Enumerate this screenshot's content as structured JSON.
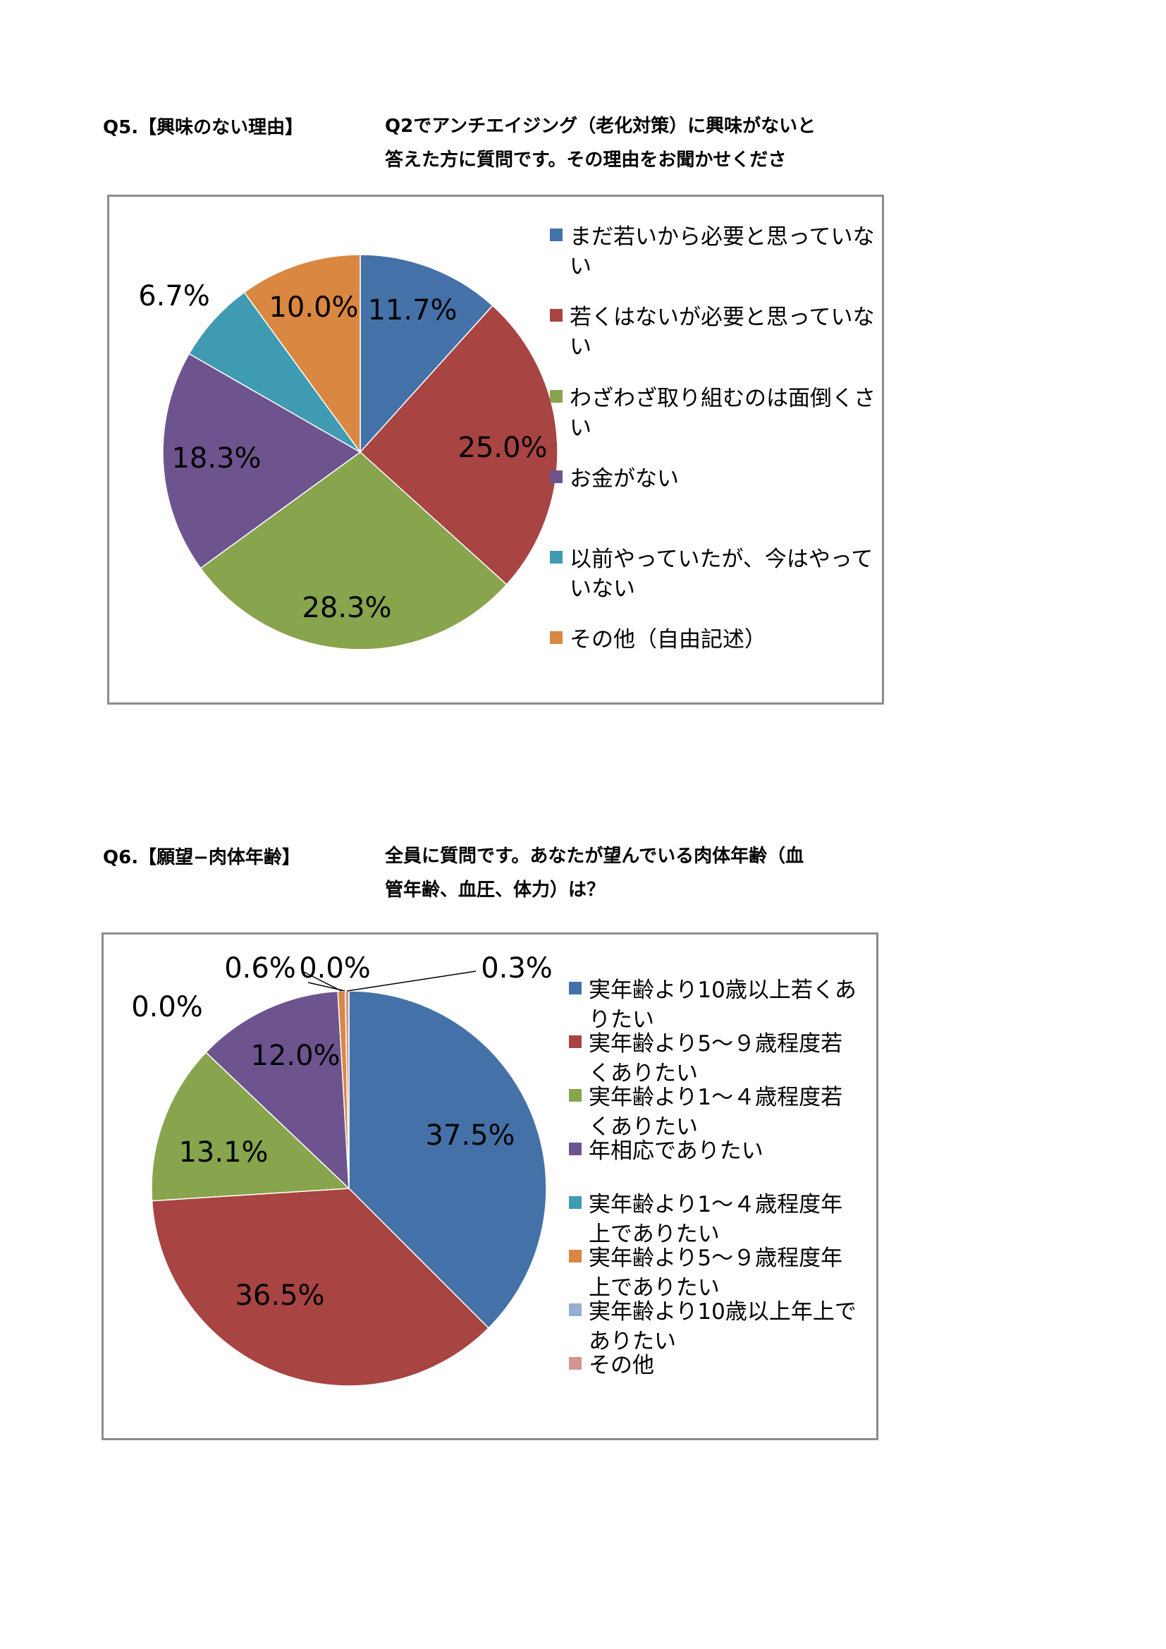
{
  "q5": {
    "label": "Q5.【興味のない理由】",
    "question_line1": "Q2でアンチエイジング（老化対策）に興味がないと",
    "question_line2": "答えた方に質問です。その理由をお聞かせくださ"
  },
  "q6": {
    "label": "Q6.【願望−肉体年齢】",
    "question_line1": "全員に質問です。あなたが望んでいる肉体年齢（血",
    "question_line2": "管年齢、血圧、体力）は？"
  },
  "chart_data": [
    {
      "type": "pie",
      "slices": [
        {
          "label": "まだ若いから必要と思っていない",
          "value": 11.7,
          "display": "11.7%",
          "color": "#4472a8"
        },
        {
          "label": "若くはないが必要と思っていない",
          "value": 25.0,
          "display": "25.0%",
          "color": "#a84442"
        },
        {
          "label": "わざわざ取り組むのは面倒くさい",
          "value": 28.3,
          "display": "28.3%",
          "color": "#88a44c"
        },
        {
          "label": "お金がない",
          "value": 18.3,
          "display": "18.3%",
          "color": "#6d548f"
        },
        {
          "label": "以前やっていたが、今はやっていない",
          "value": 6.7,
          "display": "6.7%",
          "color": "#3f9bb2"
        },
        {
          "label": "その他（自由記述）",
          "value": 10.0,
          "display": "10.0%",
          "color": "#d98741"
        }
      ],
      "legend": [
        [
          "まだ若いから必要と思っていな",
          "い"
        ],
        [
          "若くはないが必要と思っていな",
          "い"
        ],
        [
          "わざわざ取り組むのは面倒くさ",
          "い"
        ],
        [
          "お金がない"
        ],
        [
          "以前やっていたが、今はやって",
          "いない"
        ],
        [
          "その他（自由記述）"
        ]
      ],
      "legend_position": "right"
    },
    {
      "type": "pie",
      "slices": [
        {
          "label": "実年齢より10歳以上若くありたい",
          "value": 37.5,
          "display": "37.5%",
          "color": "#4472a8"
        },
        {
          "label": "実年齢より5〜9歳程度若くありたい",
          "value": 36.5,
          "display": "36.5%",
          "color": "#a84442"
        },
        {
          "label": "実年齢より1〜4歳程度若くありたい",
          "value": 13.1,
          "display": "13.1%",
          "color": "#88a44c"
        },
        {
          "label": "年相応でありたい",
          "value": 12.0,
          "display": "12.0%",
          "color": "#6d548f"
        },
        {
          "label": "実年齢より1〜4歳程度年上でありたい",
          "value": 0.0,
          "display": "0.0%",
          "color": "#3f9bb2"
        },
        {
          "label": "実年齢より5〜9歳程度年上でありたい",
          "value": 0.6,
          "display": "0.6%",
          "color": "#d98741"
        },
        {
          "label": "実年齢より10歳以上年上でありたい",
          "value": 0.0,
          "display": "0.0%",
          "color": "#95aed3"
        },
        {
          "label": "その他",
          "value": 0.3,
          "display": "0.3%",
          "color": "#d49493"
        }
      ],
      "legend": [
        [
          "実年齢より10歳以上若くあ",
          "りたい"
        ],
        [
          "実年齢より5〜９歳程度若",
          "くありたい"
        ],
        [
          "実年齢より1〜４歳程度若",
          "くありたい"
        ],
        [
          "年相応でありたい"
        ],
        [
          "実年齢より1〜４歳程度年",
          "上でありたい"
        ],
        [
          "実年齢より5〜９歳程度年",
          "上でありたい"
        ],
        [
          "実年齢より10歳以上年上で",
          "ありたい"
        ],
        [
          "その他"
        ]
      ],
      "legend_position": "right"
    }
  ]
}
